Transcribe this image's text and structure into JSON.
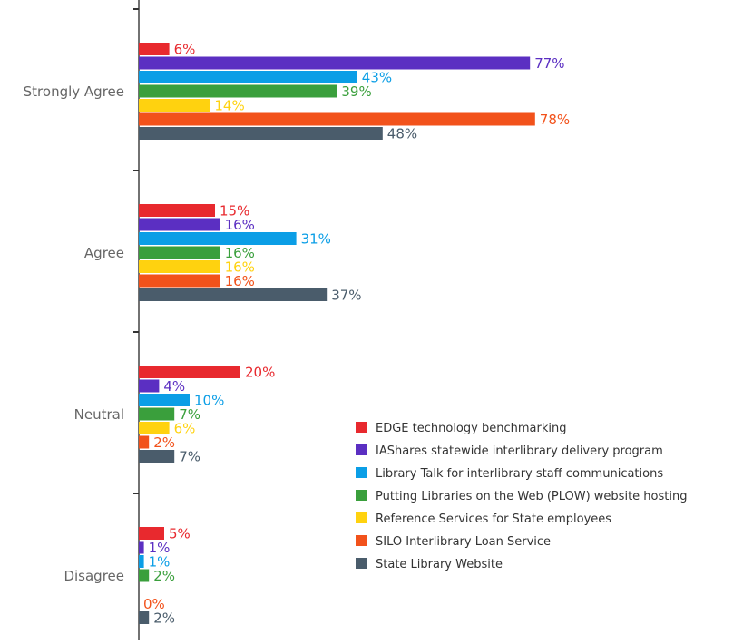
{
  "chart_data": {
    "type": "bar",
    "orientation": "horizontal",
    "categories": [
      "Strongly Agree",
      "Agree",
      "Neutral",
      "Disagree"
    ],
    "series": [
      {
        "name": "EDGE technology benchmarking",
        "color": "#e8292e",
        "values": [
          6,
          15,
          20,
          5
        ],
        "labels": [
          "6%",
          "15%",
          "20%",
          "5%"
        ]
      },
      {
        "name": "IAShares statewide interlibrary delivery program",
        "color": "#5b2fc2",
        "values": [
          77,
          16,
          4,
          1
        ],
        "labels": [
          "77%",
          "16%",
          "4%",
          "1%"
        ]
      },
      {
        "name": "Library Talk for interlibrary staff communications",
        "color": "#0b9ee6",
        "values": [
          43,
          31,
          10,
          1
        ],
        "labels": [
          "43%",
          "31%",
          "10%",
          "1%"
        ]
      },
      {
        "name": "Putting Libraries on the Web (PLOW) website hosting",
        "color": "#3a9f3c",
        "values": [
          39,
          16,
          7,
          2
        ],
        "labels": [
          "39%",
          "16%",
          "7%",
          "2%"
        ]
      },
      {
        "name": "Reference Services for State employees",
        "color": "#ffd20f",
        "values": [
          14,
          16,
          6,
          0
        ],
        "labels": [
          "14%",
          "16%",
          "6%",
          ""
        ]
      },
      {
        "name": "SILO Interlibrary Loan Service",
        "color": "#f2521b",
        "values": [
          78,
          16,
          2,
          0
        ],
        "labels": [
          "78%",
          "16%",
          "2%",
          "0%"
        ]
      },
      {
        "name": "State Library Website",
        "color": "#4a5c6b",
        "values": [
          48,
          37,
          7,
          2
        ],
        "labels": [
          "48%",
          "37%",
          "7%",
          "2%"
        ]
      }
    ],
    "xlim": [
      0,
      100
    ],
    "legend_position": "bottom-right",
    "grid": false
  }
}
